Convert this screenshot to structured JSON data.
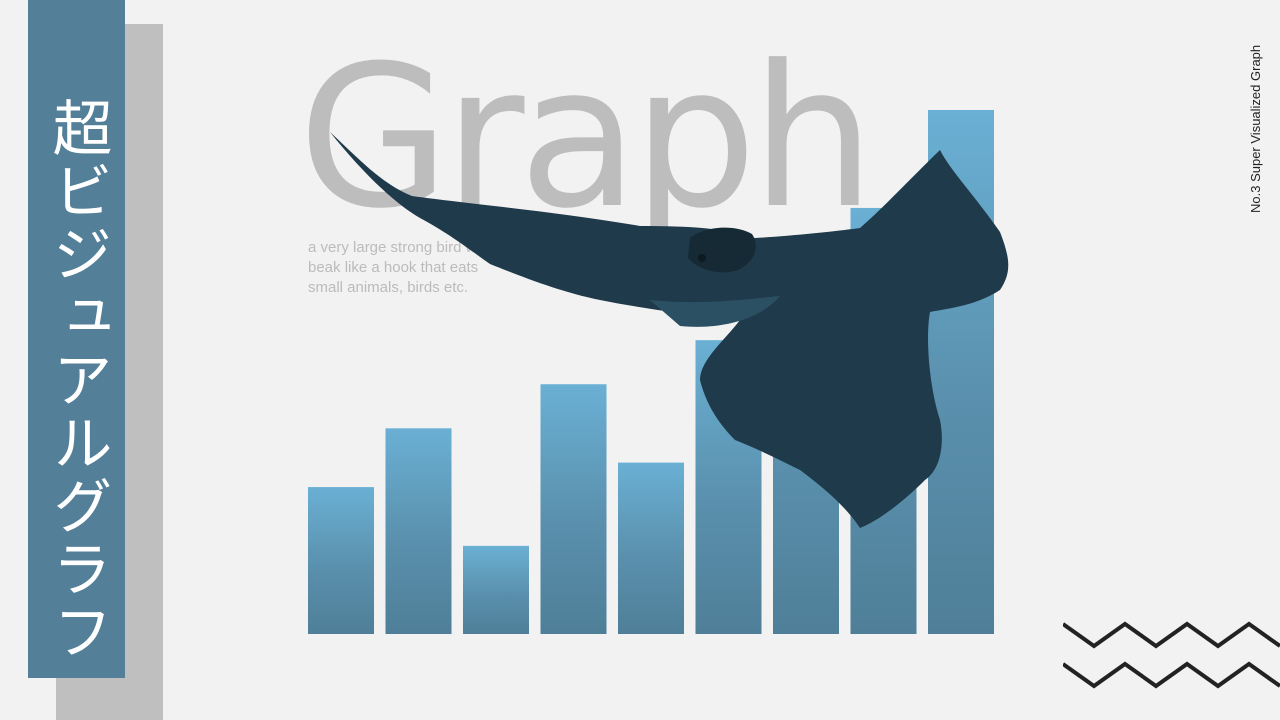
{
  "sidebar": {
    "title": "超ビジュアルグラフ"
  },
  "caption": "No.3 Super Visualized Graph",
  "headline": "Graph",
  "description": "a very large strong bird with a\nbeak like a hook that eats\nsmall animals, birds etc.",
  "colors": {
    "background": "#f2f2f2",
    "sidebar_blue": "#537f98",
    "sidebar_gray": "#bfbfbf",
    "bar_top": "#6ab0d4",
    "bar_bottom": "#4f7f98",
    "bird": "#1f3a4a",
    "headline": "#bdbdbd",
    "zigzag": "#222222"
  },
  "icons": {
    "decoration": "bird-falcon-icon",
    "pattern": "zigzag-pattern-icon"
  },
  "chart_data": {
    "type": "bar",
    "categories": [
      "",
      "",
      "",
      "",
      "",
      "",
      "",
      "",
      ""
    ],
    "values": [
      30,
      42,
      18,
      51,
      35,
      60,
      79,
      87,
      107
    ],
    "ylim": [
      0,
      107
    ],
    "grid": false,
    "title": "",
    "xlabel": "",
    "ylabel": ""
  }
}
